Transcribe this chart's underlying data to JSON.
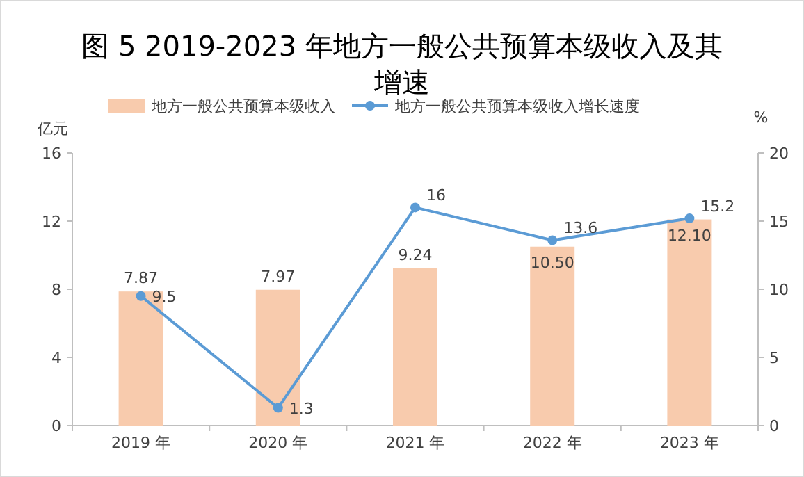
{
  "chart_data": {
    "type": "bar",
    "title": "图 5  2019-2023 年地方一般公共预算本级收入及其增速",
    "ylabel": "亿元",
    "y2label": "%",
    "categories": [
      "2019 年",
      "2020 年",
      "2021 年",
      "2022 年",
      "2023 年"
    ],
    "series": [
      {
        "name": "地方一般公共预算本级收入",
        "color": "#f8cbad",
        "values": [
          7.87,
          7.97,
          9.24,
          10.5,
          12.1
        ],
        "value_labels": [
          "7.87",
          "7.97",
          "9.24",
          "10.50",
          "12.10"
        ]
      },
      {
        "name": "地方一般公共预算本级收入增长速度",
        "type": "line",
        "axis": "y2",
        "color": "#5b9bd5",
        "marker": "circle",
        "values": [
          9.5,
          1.3,
          16,
          13.6,
          15.2
        ],
        "value_labels": [
          "9.5",
          "1.3",
          "16",
          "13.6",
          "15.2"
        ]
      }
    ],
    "ylim": [
      0,
      16
    ],
    "yticks": [
      0,
      4,
      8,
      12,
      16
    ],
    "y2lim": [
      0,
      20
    ],
    "y2ticks": [
      0,
      5,
      10,
      15,
      20
    ],
    "legend": "top"
  }
}
